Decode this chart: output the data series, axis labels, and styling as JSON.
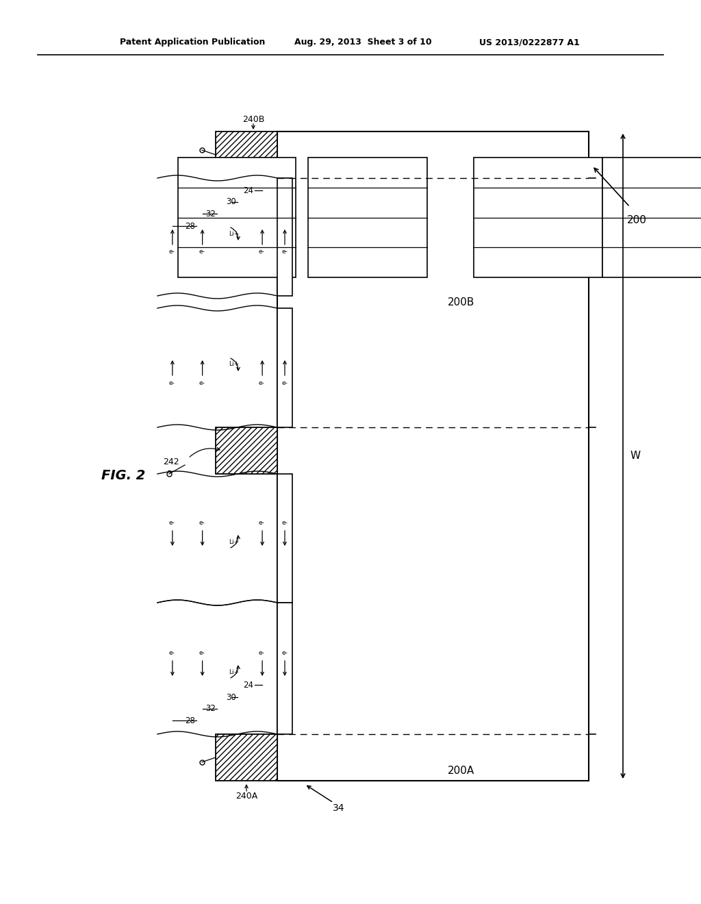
{
  "bg_color": "#ffffff",
  "header_left": "Patent Application Publication",
  "header_mid": "Aug. 29, 2013  Sheet 3 of 10",
  "header_right": "US 2013/0222877 A1",
  "fig_label": "FIG. 2",
  "device_label": "200",
  "zone_A_label": "200A",
  "zone_B_label": "200B",
  "bus_top_label": "240B",
  "bus_bot_label": "240A",
  "bus_mid_label": "242",
  "width_label": "W",
  "glass_label": "34",
  "layer_labels_top": [
    "24",
    "30",
    "32",
    "28"
  ],
  "layer_labels_bot": [
    "24",
    "30",
    "32",
    "28"
  ]
}
